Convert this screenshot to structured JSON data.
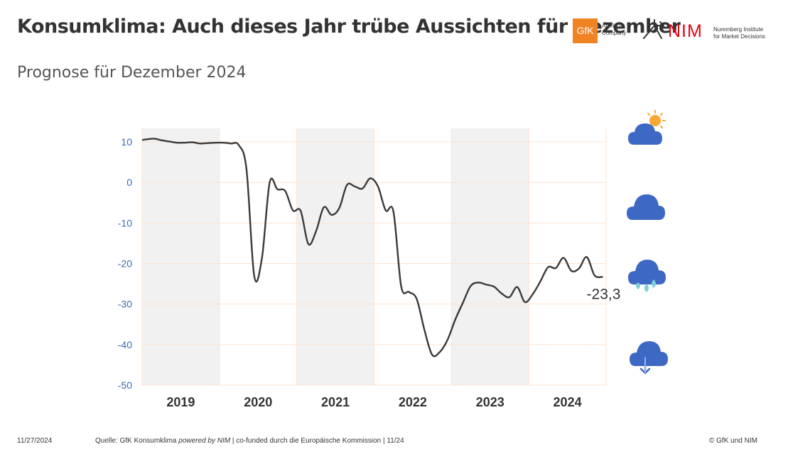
{
  "header": {
    "title": "Konsumklima: Auch dieses Jahr trübe Aussichten für Dezember",
    "subtitle": "Prognose für Dezember 2024"
  },
  "logos": {
    "gfk_mark": "GfK",
    "gfk_tag_line1": "An NIQ",
    "gfk_tag_line2": "Company",
    "nim_mark": "NIM",
    "nim_tag_line1": "Nuremberg Institute",
    "nim_tag_line2": "for Market Decisions",
    "gfk_color": "#f08323",
    "nim_color": "#e30613"
  },
  "footer": {
    "date": "11/27/2024",
    "source_prefix": "Quelle: GfK Konsumklima ",
    "source_italic": "powered by NIM",
    "source_suffix": " | co-funded durch die Europäische Kommission | 11/24",
    "copyright": "© GfK und NIM"
  },
  "weather_icons": [
    "sun-cloud-icon",
    "cloud-icon",
    "rain-cloud-icon",
    "cloud-down-arrow-icon"
  ],
  "chart_data": {
    "type": "line",
    "title": "Konsumklima: Auch dieses Jahr trübe Aussichten für Dezember",
    "subtitle": "Prognose für Dezember 2024",
    "xlabel": "",
    "ylabel": "",
    "ylim": [
      -50,
      10
    ],
    "yticks": [
      10,
      0,
      -10,
      -20,
      -30,
      -40,
      -50
    ],
    "ytick_labels": [
      "10",
      "0",
      "-10",
      "-20",
      "-30",
      "-40",
      "-50"
    ],
    "years": [
      "2019",
      "2020",
      "2021",
      "2022",
      "2023",
      "2024"
    ],
    "shaded_years": [
      "2019",
      "2021",
      "2023"
    ],
    "grid": true,
    "line_color": "#3a3a3a",
    "axis_color": "#3a6ab3",
    "shade_color": "#f1f1f1",
    "grid_color": "#fbe3d2",
    "last_value_label": "-23,3",
    "series": [
      {
        "values": [
          10.5,
          10.8,
          10.4,
          10.1,
          9.8,
          9.8,
          9.9,
          9.6,
          9.7,
          9.8,
          9.8,
          9.6,
          9.2,
          3.2,
          -23.1,
          -18.6,
          0.0,
          -1.7,
          -2.1,
          -6.9,
          -7.0,
          -15.2,
          -12.0,
          -6.1,
          -8.0,
          -6.3,
          -0.6,
          -1.0,
          -1.5,
          1.0,
          -1.0,
          -6.9,
          -7.2,
          -25.6,
          -27.0,
          -28.7,
          -36.3,
          -42.5,
          -41.8,
          -38.8,
          -33.8,
          -29.6,
          -25.5,
          -24.7,
          -25.2,
          -25.7,
          -27.4,
          -28.3,
          -25.8,
          -29.5,
          -27.6,
          -24.4,
          -20.9,
          -21.1,
          -18.6,
          -21.8,
          -21.2,
          -18.4,
          -22.9,
          -23.3
        ]
      }
    ]
  }
}
